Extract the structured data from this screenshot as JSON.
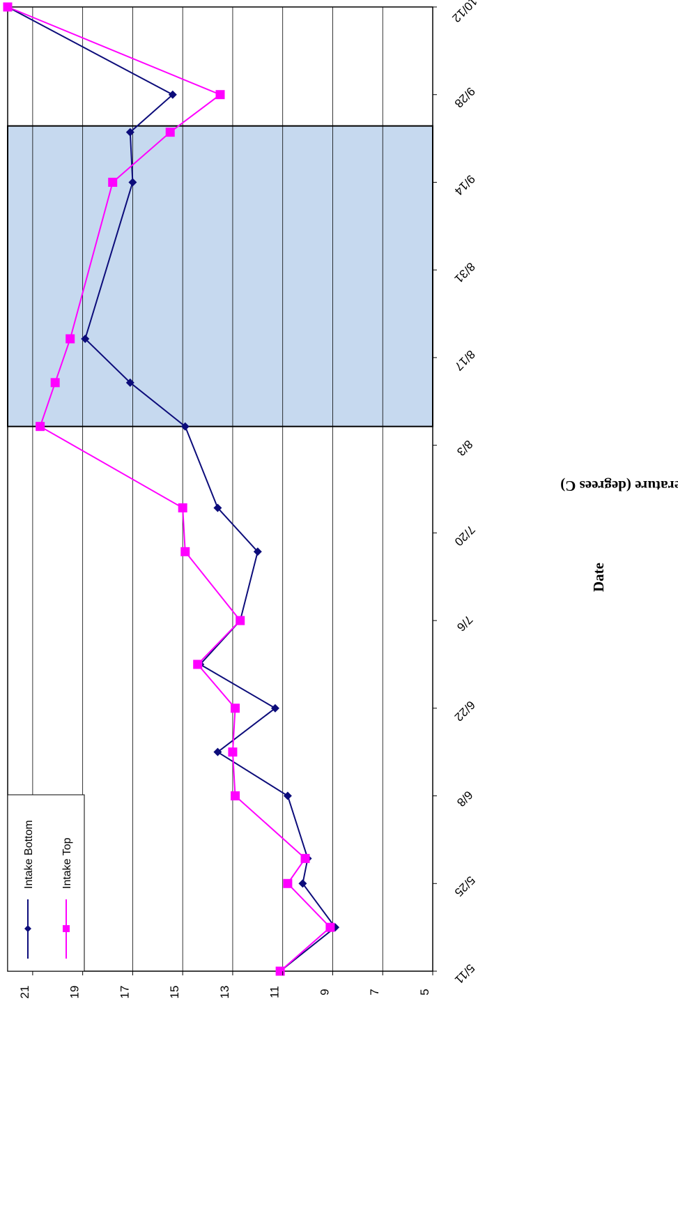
{
  "chart_data": {
    "type": "line",
    "xlabel": "Date",
    "ylabel": "Temperature (degrees C)",
    "ylim": [
      5,
      22
    ],
    "y_ticks": [
      5,
      7,
      9,
      11,
      13,
      15,
      17,
      19,
      21
    ],
    "x_ticks": [
      "5/11",
      "5/25",
      "6/8",
      "6/22",
      "7/6",
      "7/20",
      "8/3",
      "8/17",
      "8/31",
      "9/14",
      "9/28",
      "10/12"
    ],
    "x_start": "5/11",
    "x_end": "10/12",
    "grid": true,
    "legend_placement": "bottom-left",
    "shaded_region": {
      "from": "8/6",
      "to": "9/23",
      "color": "#c6d9ef"
    },
    "series": [
      {
        "name": "Intake Bottom",
        "color": "#0c0c7a",
        "marker": "diamond",
        "x": [
          "5/11",
          "5/18",
          "5/25",
          "5/29",
          "6/8",
          "6/15",
          "6/22",
          "6/29",
          "7/6",
          "7/17",
          "7/24",
          "8/6",
          "8/13",
          "8/20",
          "9/14",
          "9/22",
          "9/28",
          "10/12"
        ],
        "values": [
          11.1,
          8.9,
          10.2,
          10.0,
          10.8,
          13.6,
          11.3,
          14.3,
          12.7,
          12.0,
          13.6,
          14.9,
          17.1,
          18.9,
          17.0,
          17.1,
          15.4,
          22.0
        ]
      },
      {
        "name": "Intake Top",
        "color": "#ff00ff",
        "marker": "square",
        "x": [
          "5/11",
          "5/18",
          "5/25",
          "5/29",
          "6/8",
          "6/15",
          "6/22",
          "6/29",
          "7/6",
          "7/17",
          "7/24",
          "8/6",
          "8/13",
          "8/20",
          "9/14",
          "9/22",
          "9/28",
          "10/12"
        ],
        "values": [
          11.1,
          9.1,
          10.8,
          10.1,
          12.9,
          13.0,
          12.9,
          14.4,
          12.7,
          14.9,
          15.0,
          20.7,
          20.1,
          19.5,
          17.8,
          15.5,
          13.5,
          22.0
        ]
      }
    ]
  }
}
